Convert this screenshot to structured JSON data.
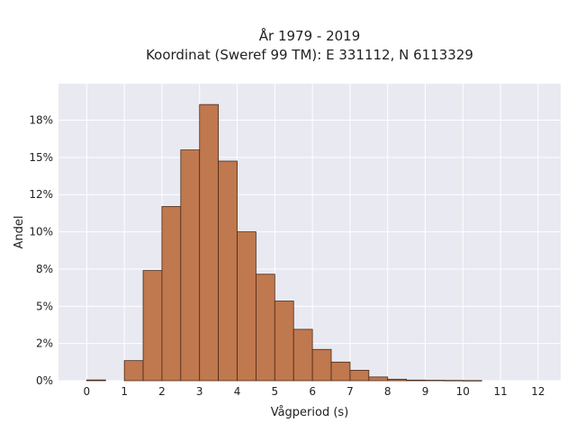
{
  "chart_data": {
    "type": "bar",
    "title_lines": [
      "År 1979 - 2019",
      "Koordinat (Sweref 99 TM): E 331112, N 6113329"
    ],
    "xlabel": "Vågperiod (s)",
    "ylabel": "Andel",
    "xlim": [
      -0.75,
      12.6
    ],
    "ylim": [
      0,
      0.1995
    ],
    "xticks": [
      0,
      1,
      2,
      3,
      4,
      5,
      6,
      7,
      8,
      9,
      10,
      11,
      12
    ],
    "xtick_labels": [
      "0",
      "1",
      "2",
      "3",
      "4",
      "5",
      "6",
      "7",
      "8",
      "9",
      "10",
      "11",
      "12"
    ],
    "yticks": [
      0,
      0.025,
      0.05,
      0.075,
      0.1,
      0.125,
      0.15,
      0.175
    ],
    "ytick_labels": [
      "0%",
      "2%",
      "5%",
      "8%",
      "10%",
      "12%",
      "15%",
      "18%"
    ],
    "bin_width": 0.5,
    "bins": [
      {
        "x": 0.0,
        "value": 0.0005
      },
      {
        "x": 1.0,
        "value": 0.0135
      },
      {
        "x": 1.5,
        "value": 0.074
      },
      {
        "x": 2.0,
        "value": 0.117
      },
      {
        "x": 2.5,
        "value": 0.155
      },
      {
        "x": 3.0,
        "value": 0.1855
      },
      {
        "x": 3.5,
        "value": 0.1475
      },
      {
        "x": 4.0,
        "value": 0.1
      },
      {
        "x": 4.5,
        "value": 0.0715
      },
      {
        "x": 5.0,
        "value": 0.0535
      },
      {
        "x": 5.5,
        "value": 0.0345
      },
      {
        "x": 6.0,
        "value": 0.021
      },
      {
        "x": 6.5,
        "value": 0.0125
      },
      {
        "x": 7.0,
        "value": 0.007
      },
      {
        "x": 7.5,
        "value": 0.0025
      },
      {
        "x": 8.0,
        "value": 0.001
      },
      {
        "x": 8.5,
        "value": 0.0004
      },
      {
        "x": 9.0,
        "value": 0.0003
      },
      {
        "x": 9.5,
        "value": 0.0002
      },
      {
        "x": 10.0,
        "value": 0.0001
      }
    ],
    "grid": true,
    "colors": {
      "bar_fill": "#c0784e",
      "bar_edge": "#4a2a18",
      "plot_background": "#e9e9f1",
      "grid": "#ffffff"
    }
  }
}
